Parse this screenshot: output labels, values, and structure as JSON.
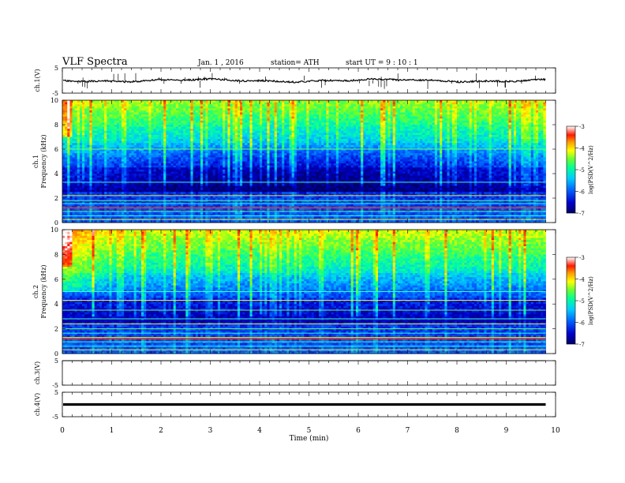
{
  "header": {
    "title": "VLF  Spectra",
    "date": "Jan.  1  , 2016",
    "station": "station= ATH",
    "start_ut": "start  UT  =    9  : 10 : 1"
  },
  "colorbar": {
    "label": "log(PSD(V^2/Hz)",
    "ticks": [
      "-3",
      "-4",
      "-5",
      "-6",
      "-7"
    ]
  },
  "chart_data": [
    {
      "type": "line",
      "name": "ch1-waveform",
      "ylabel": "ch.1(V)",
      "ylim": [
        -5,
        5
      ],
      "y_ticks": [
        "5",
        "-5"
      ],
      "baseline_value": 0,
      "x_end": 9.8,
      "color": "#000000"
    },
    {
      "type": "heatmap",
      "name": "ch1-spectrogram",
      "ylabel_channel": "ch.1",
      "ylabel": "Frequency  (kHz)",
      "ylim": [
        0,
        10
      ],
      "y_ticks": [
        "0",
        "2",
        "4",
        "6",
        "8",
        "10"
      ],
      "x_end": 9.8,
      "zlim": [
        -7,
        -3
      ]
    },
    {
      "type": "heatmap",
      "name": "ch2-spectrogram",
      "ylabel_channel": "ch.2",
      "ylabel": "Frequency  (kHz)",
      "ylim": [
        0,
        10
      ],
      "y_ticks": [
        "0",
        "2",
        "4",
        "6",
        "8",
        "10"
      ],
      "x_end": 9.8,
      "zlim": [
        -7,
        -3
      ]
    },
    {
      "type": "line",
      "name": "ch3-waveform",
      "ylabel": "ch.3(V)",
      "ylim": [
        -5,
        5
      ],
      "y_ticks": [
        "5",
        "-5"
      ],
      "baseline_value": 5,
      "x_end": 9.8,
      "color": "#000000"
    },
    {
      "type": "line",
      "name": "ch4-waveform",
      "ylabel": "ch.4(V)",
      "ylim": [
        -5,
        5
      ],
      "y_ticks": [
        "5",
        "-5"
      ],
      "baseline_value": 0,
      "x_end": 9.8,
      "color": "#000000"
    }
  ],
  "x_axis": {
    "label": "Time  (min)",
    "range": [
      0,
      10
    ],
    "ticks": [
      "0",
      "1",
      "2",
      "3",
      "4",
      "5",
      "6",
      "7",
      "8",
      "9",
      "10"
    ]
  }
}
